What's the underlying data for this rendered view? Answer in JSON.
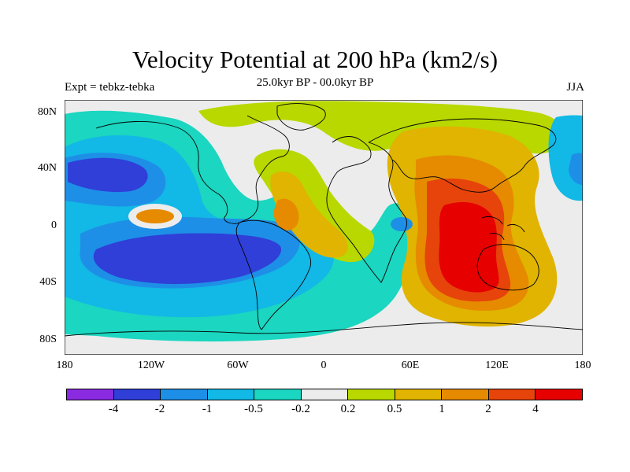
{
  "header": {
    "title": "Velocity Potential at 200 hPa (km2/s)",
    "subtitle": "25.0kyr BP - 00.0kyr BP",
    "left": "Expt = tebkz-tebka",
    "right": "JJA"
  },
  "axes": {
    "y_ticks": [
      "80N",
      "40N",
      "0",
      "40S",
      "80S"
    ],
    "x_ticks": [
      "180",
      "120W",
      "60W",
      "0",
      "60E",
      "120E",
      "180"
    ]
  },
  "colorbar": {
    "colors": [
      "#8a2be2",
      "#2f3fd8",
      "#1e8fe6",
      "#12b8e6",
      "#1bd6c0",
      "#ececec",
      "#b8d800",
      "#e0b400",
      "#e68a00",
      "#e6440a",
      "#e60000"
    ],
    "labels": [
      "-4",
      "-2",
      "-1",
      "-0.5",
      "-0.2",
      "0.2",
      "0.5",
      "1",
      "2",
      "4"
    ]
  },
  "map": {
    "projection": "cylindrical-equidistant",
    "lat_range": [
      -90,
      90
    ],
    "lon_range": [
      -180,
      180
    ],
    "fields": [
      {
        "type": "negative-center",
        "value_band": "-2",
        "region": "South Pacific / South America"
      },
      {
        "type": "negative-center",
        "value_band": "-2",
        "region": "North Pacific"
      },
      {
        "type": "positive-center",
        "value_band": "4",
        "region": "Maritime Continent / Australia"
      },
      {
        "type": "positive-center",
        "value_band": "1",
        "region": "Equatorial Atlantic"
      }
    ]
  }
}
